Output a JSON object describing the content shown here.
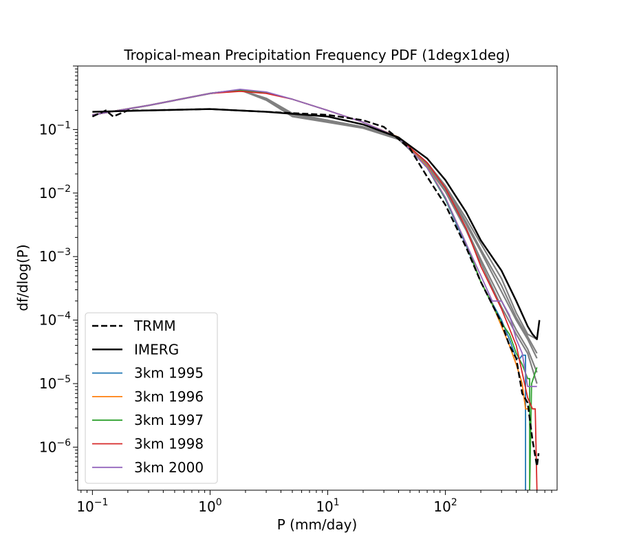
{
  "chart_data": {
    "type": "line",
    "title": "Tropical-mean Precipitation Frequency PDF (1degx1deg)",
    "xlabel": "P (mm/day)",
    "ylabel": "df/dlog(P)",
    "xscale": "log",
    "yscale": "log",
    "xlim": [
      0.075,
      890
    ],
    "ylim": [
      2.1e-07,
      1.0
    ],
    "x_ticks": [
      {
        "value": 0.1,
        "base": "10",
        "exp": "−1"
      },
      {
        "value": 1,
        "base": "10",
        "exp": "0"
      },
      {
        "value": 10,
        "base": "10",
        "exp": "1"
      },
      {
        "value": 100,
        "base": "10",
        "exp": "2"
      }
    ],
    "y_ticks": [
      {
        "value": 1e-06,
        "base": "10",
        "exp": "−6"
      },
      {
        "value": 1e-05,
        "base": "10",
        "exp": "−5"
      },
      {
        "value": 0.0001,
        "base": "10",
        "exp": "−4"
      },
      {
        "value": 0.001,
        "base": "10",
        "exp": "−3"
      },
      {
        "value": 0.01,
        "base": "10",
        "exp": "−2"
      },
      {
        "value": 0.1,
        "base": "10",
        "exp": "−1"
      }
    ],
    "legend_position": "lower-left",
    "series": [
      {
        "name": "gray-1",
        "legend": false,
        "color": "#808080",
        "style": "solid",
        "x": [
          0.1,
          0.3,
          1,
          1.8,
          3,
          5,
          10,
          20,
          40,
          70,
          100,
          150,
          200,
          300,
          400,
          500,
          600
        ],
        "y": [
          0.17,
          0.24,
          0.37,
          0.42,
          0.3,
          0.17,
          0.14,
          0.11,
          0.072,
          0.028,
          0.012,
          0.0032,
          0.0012,
          0.00028,
          0.0001,
          5e-05,
          2.5e-05
        ]
      },
      {
        "name": "gray-2",
        "legend": false,
        "color": "#808080",
        "style": "solid",
        "x": [
          0.1,
          0.3,
          1,
          1.8,
          3,
          5,
          10,
          20,
          40,
          70,
          100,
          150,
          200,
          300,
          400,
          500,
          600
        ],
        "y": [
          0.17,
          0.24,
          0.37,
          0.42,
          0.29,
          0.16,
          0.13,
          0.105,
          0.07,
          0.027,
          0.011,
          0.0028,
          0.0009,
          0.0002,
          7e-05,
          3.5e-05,
          1.5e-05
        ]
      },
      {
        "name": "gray-3",
        "legend": false,
        "color": "#808080",
        "style": "solid",
        "x": [
          0.1,
          0.3,
          1,
          1.8,
          3,
          5,
          10,
          20,
          40,
          70,
          100,
          150,
          200,
          300,
          400,
          500,
          600
        ],
        "y": [
          0.17,
          0.24,
          0.37,
          0.42,
          0.31,
          0.18,
          0.14,
          0.11,
          0.074,
          0.03,
          0.013,
          0.004,
          0.0016,
          0.00045,
          0.00013,
          6e-05,
          5e-05
        ]
      },
      {
        "name": "gray-4",
        "legend": false,
        "color": "#808080",
        "style": "solid",
        "x": [
          0.1,
          0.3,
          1,
          1.8,
          3,
          5,
          10,
          20,
          40,
          70,
          100,
          150,
          200,
          300,
          400,
          500,
          600
        ],
        "y": [
          0.17,
          0.24,
          0.37,
          0.42,
          0.3,
          0.17,
          0.135,
          0.108,
          0.071,
          0.026,
          0.0105,
          0.0026,
          0.0008,
          0.00016,
          6e-05,
          3e-05,
          1e-05
        ]
      },
      {
        "name": "gray-5",
        "legend": false,
        "color": "#808080",
        "style": "solid",
        "x": [
          0.1,
          0.3,
          1,
          1.8,
          3,
          5,
          10,
          20,
          40,
          70,
          100,
          150,
          200,
          300,
          400,
          500,
          600
        ],
        "y": [
          0.17,
          0.24,
          0.37,
          0.42,
          0.3,
          0.175,
          0.138,
          0.11,
          0.073,
          0.029,
          0.0125,
          0.0035,
          0.0013,
          0.00035,
          0.00011,
          5.5e-05,
          3e-05
        ]
      },
      {
        "name": "3km 1995",
        "legend": true,
        "color": "#1f77b4",
        "style": "solid",
        "x": [
          0.1,
          0.3,
          1,
          1.8,
          3,
          5,
          10,
          20,
          40,
          70,
          100,
          150,
          200,
          300,
          350,
          400,
          430,
          450,
          480,
          480
        ],
        "y": [
          0.17,
          0.24,
          0.37,
          0.42,
          0.38,
          0.3,
          0.2,
          0.13,
          0.075,
          0.025,
          0.008,
          0.0015,
          0.0004,
          0.0001,
          5e-05,
          2.5e-05,
          2.5e-05,
          2.8e-05,
          2.8e-05,
          2.1e-07
        ]
      },
      {
        "name": "3km 1996",
        "legend": true,
        "color": "#ff7f0e",
        "style": "solid",
        "x": [
          0.1,
          0.3,
          1,
          1.8,
          3,
          5,
          10,
          20,
          40,
          70,
          100,
          150,
          200,
          250,
          300,
          350,
          400,
          450,
          480,
          520
        ],
        "y": [
          0.17,
          0.24,
          0.37,
          0.42,
          0.38,
          0.3,
          0.2,
          0.13,
          0.076,
          0.026,
          0.0085,
          0.0016,
          0.0004,
          0.00018,
          8e-05,
          4e-05,
          2e-05,
          1e-05,
          4e-06,
          4e-06
        ]
      },
      {
        "name": "3km 1997",
        "legend": true,
        "color": "#2ca02c",
        "style": "solid",
        "x": [
          0.1,
          0.3,
          1,
          1.8,
          3,
          5,
          10,
          20,
          40,
          70,
          100,
          150,
          200,
          300,
          350,
          400,
          450,
          500,
          520,
          520,
          540,
          600
        ],
        "y": [
          0.17,
          0.24,
          0.37,
          0.42,
          0.38,
          0.3,
          0.2,
          0.13,
          0.075,
          0.025,
          0.0082,
          0.0016,
          0.0004,
          9e-05,
          6e-05,
          3e-05,
          2e-05,
          1.2e-05,
          1.2e-05,
          2.1e-07,
          1e-05,
          1.8e-05
        ]
      },
      {
        "name": "3km 1998",
        "legend": true,
        "color": "#d62728",
        "style": "solid",
        "x": [
          0.1,
          0.3,
          1,
          1.8,
          3,
          5,
          10,
          20,
          40,
          70,
          100,
          150,
          200,
          300,
          400,
          500,
          550,
          580,
          600
        ],
        "y": [
          0.17,
          0.24,
          0.37,
          0.4,
          0.37,
          0.3,
          0.2,
          0.13,
          0.075,
          0.03,
          0.012,
          0.0028,
          0.0007,
          0.00015,
          4e-05,
          6e-06,
          4e-06,
          4e-06,
          2.1e-07
        ]
      },
      {
        "name": "3km 2000",
        "legend": true,
        "color": "#9467bd",
        "style": "solid",
        "x": [
          0.1,
          0.3,
          1,
          1.8,
          3,
          5,
          10,
          20,
          40,
          70,
          100,
          150,
          200,
          250,
          300,
          350,
          400,
          450,
          500,
          550,
          600
        ],
        "y": [
          0.17,
          0.24,
          0.37,
          0.43,
          0.39,
          0.3,
          0.2,
          0.13,
          0.075,
          0.025,
          0.0085,
          0.0016,
          0.0005,
          0.0002,
          0.0002,
          0.00012,
          5e-05,
          3e-05,
          9e-06,
          9e-06,
          9e-06
        ]
      },
      {
        "name": "TRMM",
        "legend": true,
        "color": "#000000",
        "style": "dashed",
        "x": [
          0.1,
          0.13,
          0.15,
          0.2,
          0.3,
          1,
          3,
          10,
          20,
          30,
          50,
          70,
          100,
          150,
          200,
          300,
          350,
          400,
          450,
          500,
          550,
          600,
          620
        ],
        "y": [
          0.16,
          0.2,
          0.16,
          0.2,
          0.2,
          0.21,
          0.19,
          0.17,
          0.14,
          0.11,
          0.05,
          0.018,
          0.0065,
          0.0014,
          0.0004,
          9e-05,
          4e-05,
          2.5e-05,
          7e-06,
          5e-06,
          1.3e-06,
          5e-07,
          8e-07
        ]
      },
      {
        "name": "IMERG",
        "legend": true,
        "color": "#000000",
        "style": "solid",
        "x": [
          0.1,
          0.3,
          1,
          3,
          10,
          20,
          40,
          70,
          100,
          150,
          200,
          300,
          400,
          500,
          550,
          600,
          630
        ],
        "y": [
          0.19,
          0.2,
          0.21,
          0.19,
          0.16,
          0.12,
          0.075,
          0.035,
          0.016,
          0.005,
          0.0018,
          0.0006,
          0.0002,
          8e-05,
          6e-05,
          5e-05,
          0.0001
        ]
      }
    ]
  }
}
